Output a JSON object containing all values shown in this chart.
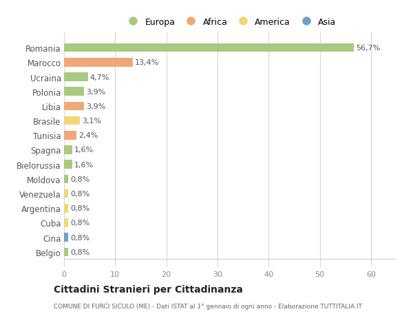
{
  "countries": [
    "Romania",
    "Marocco",
    "Ucraina",
    "Polonia",
    "Libia",
    "Brasile",
    "Tunisia",
    "Spagna",
    "Bielorussia",
    "Moldova",
    "Venezuela",
    "Argentina",
    "Cuba",
    "Cina",
    "Belgio"
  ],
  "values": [
    56.7,
    13.4,
    4.7,
    3.9,
    3.9,
    3.1,
    2.4,
    1.6,
    1.6,
    0.8,
    0.8,
    0.8,
    0.8,
    0.8,
    0.8
  ],
  "labels": [
    "56,7%",
    "13,4%",
    "4,7%",
    "3,9%",
    "3,9%",
    "3,1%",
    "2,4%",
    "1,6%",
    "1,6%",
    "0,8%",
    "0,8%",
    "0,8%",
    "0,8%",
    "0,8%",
    "0,8%"
  ],
  "continents": [
    "Europa",
    "Africa",
    "Europa",
    "Europa",
    "Africa",
    "America",
    "Africa",
    "Europa",
    "Europa",
    "Europa",
    "America",
    "America",
    "America",
    "Asia",
    "Europa"
  ],
  "colors": {
    "Europa": "#a8c97f",
    "Africa": "#f0a878",
    "America": "#f0d878",
    "Asia": "#6fa0c8"
  },
  "legend_order": [
    "Europa",
    "Africa",
    "America",
    "Asia"
  ],
  "xlim": [
    0,
    65
  ],
  "xticks": [
    0,
    10,
    20,
    30,
    40,
    50,
    60
  ],
  "title": "Cittadini Stranieri per Cittadinanza",
  "subtitle": "COMUNE DI FURCI SICULO (ME) - Dati ISTAT al 1° gennaio di ogni anno - Elaborazione TUTTITALIA.IT",
  "bg_color": "#ffffff",
  "grid_color": "#d8d8d8",
  "label_fontsize": 8,
  "bar_height": 0.6
}
